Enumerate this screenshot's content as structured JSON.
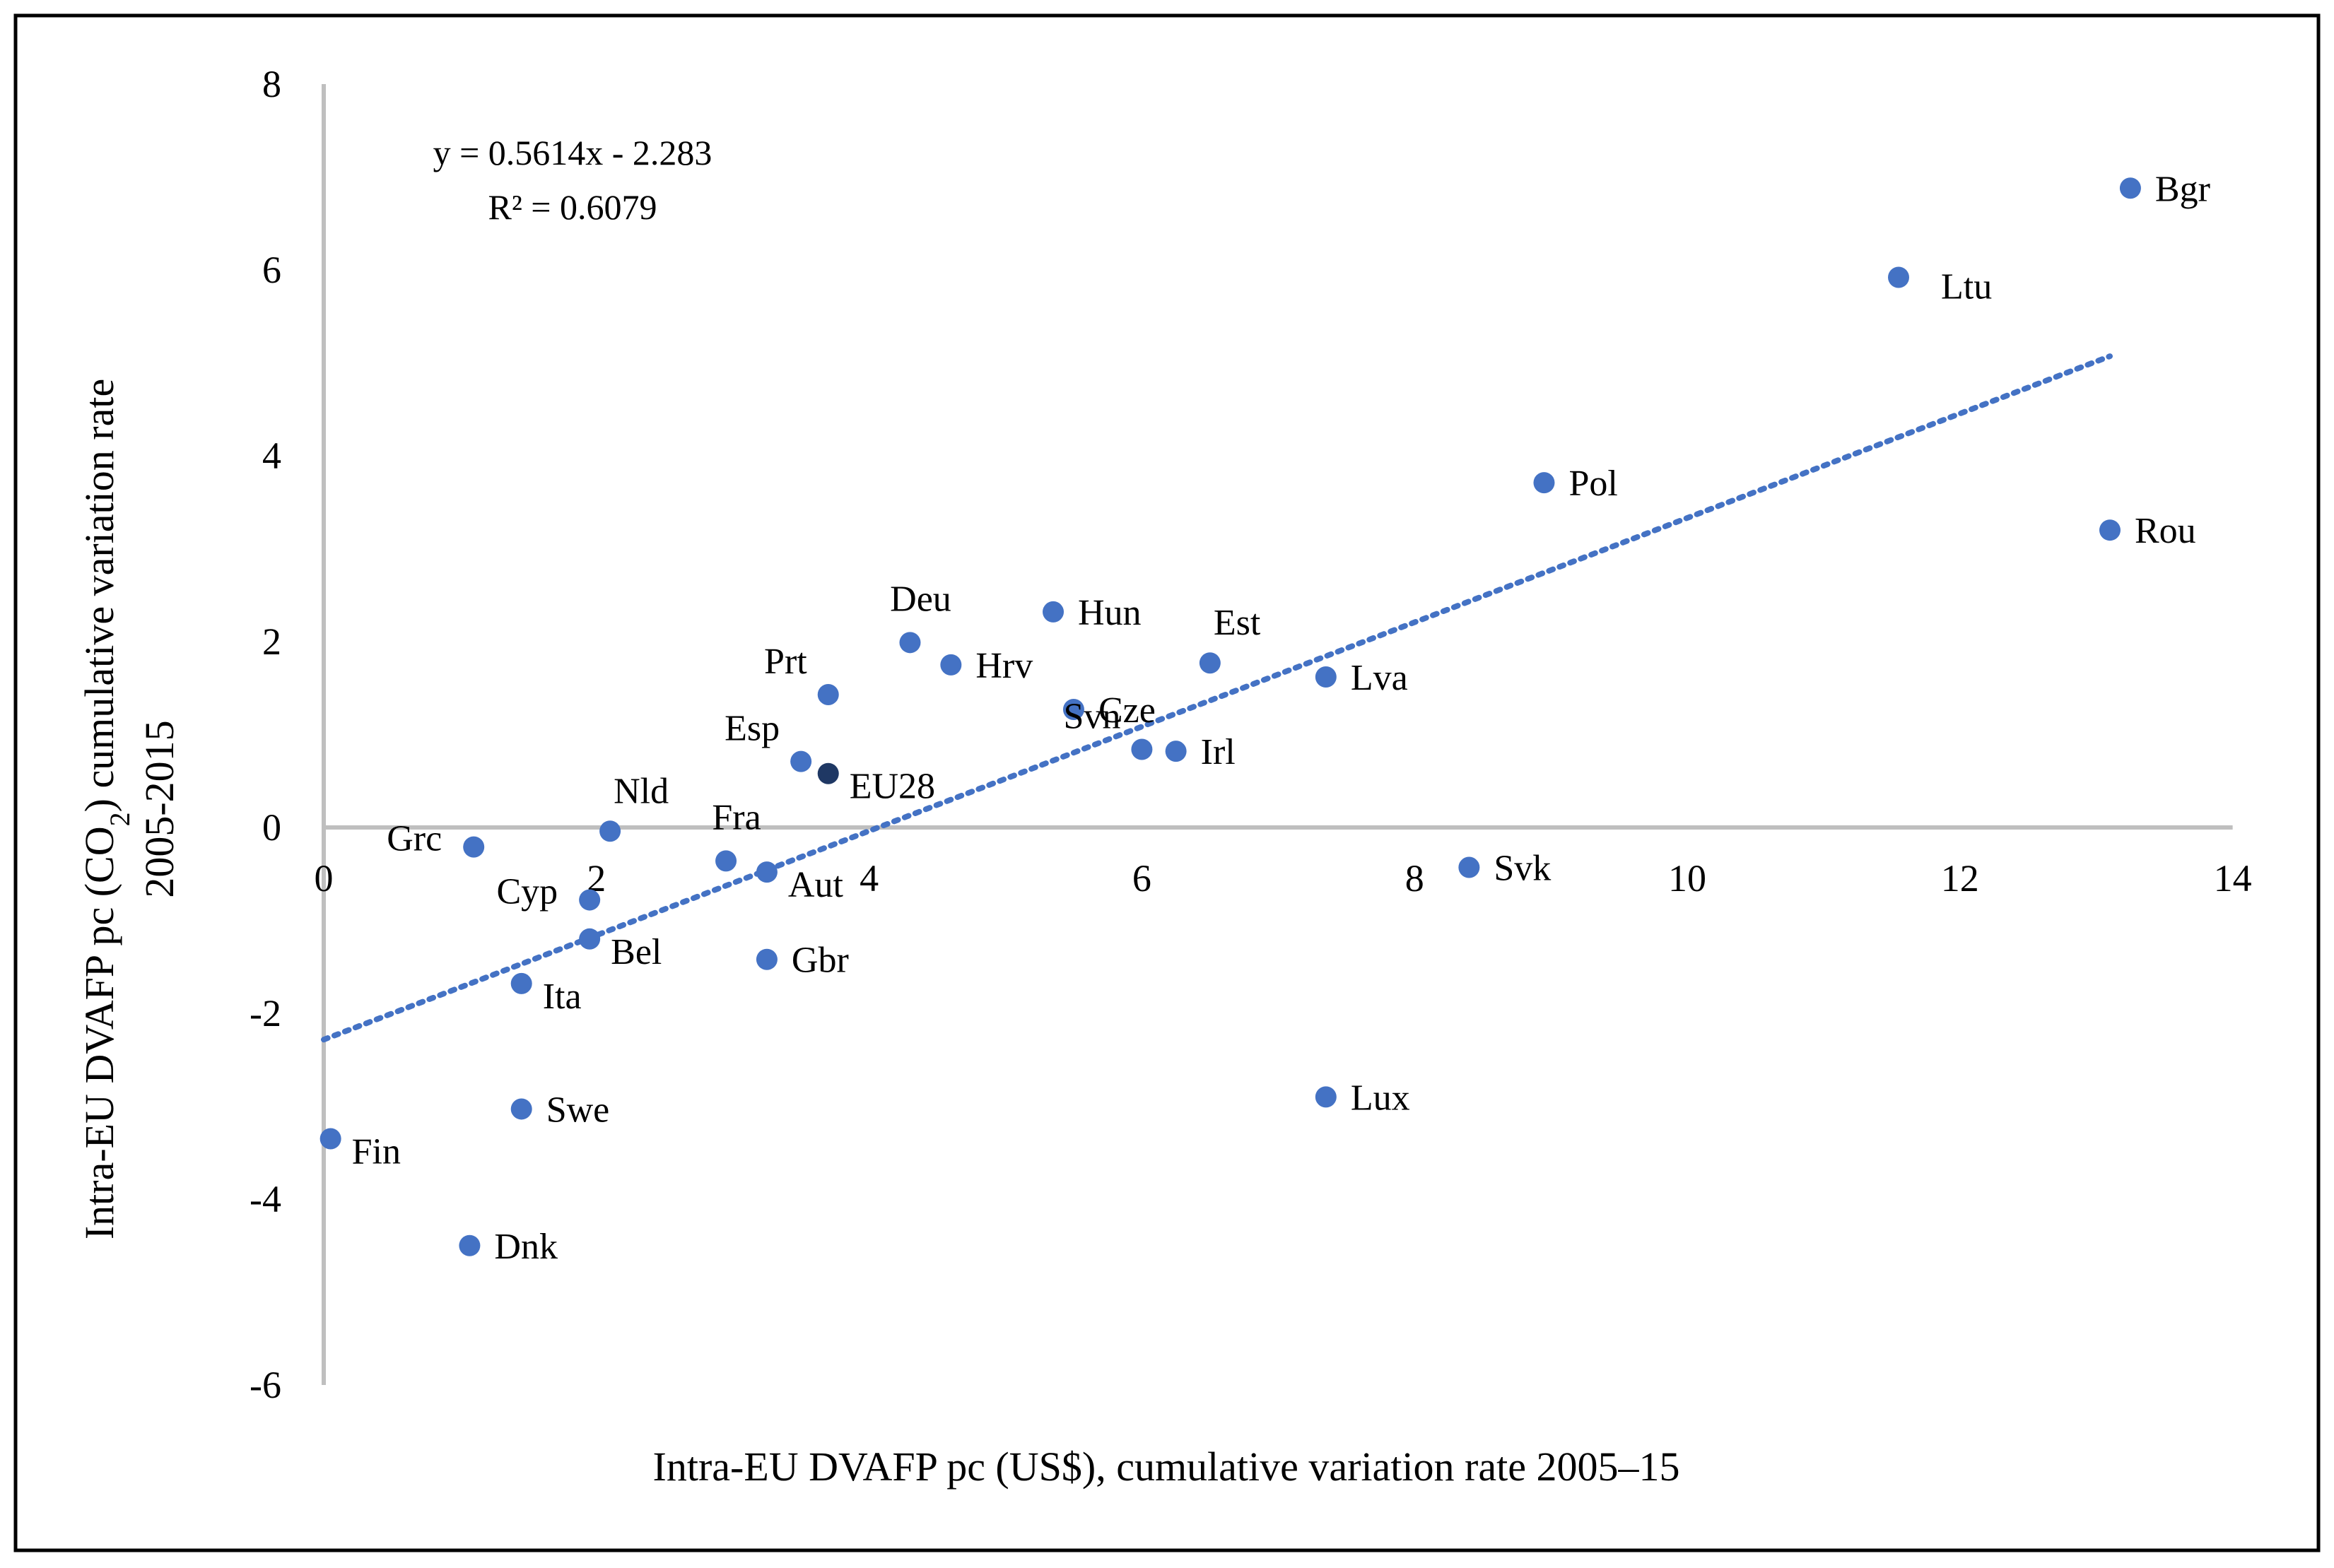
{
  "chart_data": {
    "type": "scatter",
    "title": "",
    "xlabel": "Intra-EU DVAFP pc (US$), cumulative variation rate 2005–15",
    "ylabel_line1_pre": "Intra-EU DVAFP pc (CO",
    "ylabel_line1_sub": "2",
    "ylabel_line1_post": ") cumulative variation rate",
    "ylabel_line2": "2005-2015",
    "xlim": [
      0,
      14
    ],
    "ylim": [
      -6,
      8
    ],
    "xticks": [
      0,
      2,
      4,
      6,
      8,
      10,
      12,
      14
    ],
    "yticks": [
      -6,
      -4,
      -2,
      0,
      2,
      4,
      6,
      8
    ],
    "grid": false,
    "legend": "none",
    "colors": {
      "point": "#4472c4",
      "highlight": "#1f3864",
      "trend": "#4472c4",
      "axis": "#bfbfbf",
      "border": "#000000"
    },
    "trendline": {
      "slope": 0.5614,
      "intercept": -2.283,
      "x_range": [
        0,
        13.1
      ],
      "style": "dotted",
      "equation": "y = 0.5614x - 2.283",
      "r_squared": "R² = 0.6079"
    },
    "points": [
      {
        "label": "Bgr",
        "x": 13.25,
        "y": 6.88,
        "anchor": "right"
      },
      {
        "label": "Ltu",
        "x": 11.55,
        "y": 5.92,
        "anchor": "right-far"
      },
      {
        "label": "Pol",
        "x": 8.95,
        "y": 3.71,
        "anchor": "right"
      },
      {
        "label": "Rou",
        "x": 13.1,
        "y": 3.2,
        "anchor": "right"
      },
      {
        "label": "Deu",
        "x": 4.3,
        "y": 1.99,
        "anchor": "above"
      },
      {
        "label": "Hun",
        "x": 5.35,
        "y": 2.32,
        "anchor": "right"
      },
      {
        "label": "Hrv",
        "x": 4.6,
        "y": 1.75,
        "anchor": "right"
      },
      {
        "label": "Est",
        "x": 6.5,
        "y": 1.77,
        "anchor": "above-right"
      },
      {
        "label": "Lva",
        "x": 7.35,
        "y": 1.62,
        "anchor": "right"
      },
      {
        "label": "Prt",
        "x": 3.7,
        "y": 1.43,
        "anchor": "left-above"
      },
      {
        "label": "Cze",
        "x": 5.5,
        "y": 1.27,
        "anchor": "right"
      },
      {
        "label": "Svn",
        "x": 6.0,
        "y": 0.84,
        "anchor": "left-above"
      },
      {
        "label": "Irl",
        "x": 6.25,
        "y": 0.82,
        "anchor": "right"
      },
      {
        "label": "Esp",
        "x": 3.5,
        "y": 0.71,
        "anchor": "left-above"
      },
      {
        "label": "EU28",
        "x": 3.7,
        "y": 0.58,
        "anchor": "right-below",
        "highlight": true
      },
      {
        "label": "Nld",
        "x": 2.1,
        "y": -0.04,
        "anchor": "above-right"
      },
      {
        "label": "Grc",
        "x": 1.1,
        "y": -0.21,
        "anchor": "left"
      },
      {
        "label": "Fra",
        "x": 2.95,
        "y": -0.36,
        "anchor": "above"
      },
      {
        "label": "Aut",
        "x": 3.25,
        "y": -0.48,
        "anchor": "right-below"
      },
      {
        "label": "Svk",
        "x": 8.4,
        "y": -0.43,
        "anchor": "right"
      },
      {
        "label": "Cyp",
        "x": 1.95,
        "y": -0.78,
        "anchor": "left"
      },
      {
        "label": "Bel",
        "x": 1.95,
        "y": -1.2,
        "anchor": "right-below"
      },
      {
        "label": "Gbr",
        "x": 3.25,
        "y": -1.42,
        "anchor": "right"
      },
      {
        "label": "Ita",
        "x": 1.45,
        "y": -1.68,
        "anchor": "right-below"
      },
      {
        "label": "Swe",
        "x": 1.45,
        "y": -3.03,
        "anchor": "right"
      },
      {
        "label": "Lux",
        "x": 7.35,
        "y": -2.9,
        "anchor": "right"
      },
      {
        "label": "Fin",
        "x": 0.05,
        "y": -3.35,
        "anchor": "right-below"
      },
      {
        "label": "Dnk",
        "x": 1.07,
        "y": -4.5,
        "anchor": "right"
      }
    ]
  }
}
